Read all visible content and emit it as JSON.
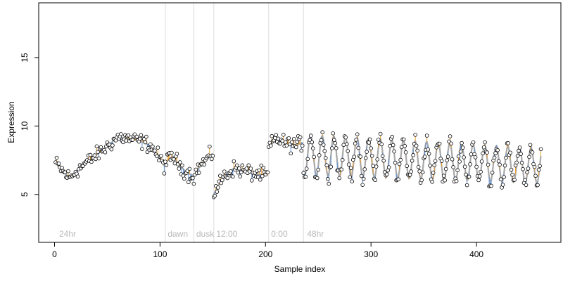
{
  "chart_data": {
    "type": "scatter",
    "title": "",
    "xlabel": "Sample index",
    "ylabel": "Expression",
    "xlim": [
      -15,
      480
    ],
    "ylim": [
      1.5,
      19
    ],
    "x_ticks": [
      0,
      100,
      200,
      300,
      400
    ],
    "y_ticks": [
      5,
      10,
      15
    ],
    "grid": false,
    "colors": {
      "fit_line": "#a8a8a8",
      "residual_positive": "#f0a030",
      "residual_negative": "#5b8fd8",
      "point_stroke": "#000000",
      "point_fill": "#ffffff",
      "divider": "#dddddd",
      "annotation_text": "#b8b8b8"
    },
    "annotations": [
      {
        "x": 3,
        "label": "24hr"
      },
      {
        "x": 106,
        "label": "dawn"
      },
      {
        "x": 133,
        "label": "dusk"
      },
      {
        "x": 152,
        "label": "12:00"
      },
      {
        "x": 204,
        "label": "0:00"
      },
      {
        "x": 238,
        "label": "48hr"
      }
    ],
    "dividers": [
      105,
      132,
      151,
      203,
      236
    ],
    "n_points": 461,
    "segments": [
      {
        "type": "anchors",
        "x": [
          1,
          10,
          15,
          20,
          35,
          50,
          60,
          75,
          85,
          92,
          100,
          104
        ],
        "y": [
          7.3,
          6.5,
          6.2,
          6.7,
          7.6,
          8.5,
          9.2,
          9.0,
          8.8,
          8.5,
          7.6,
          7.1
        ]
      },
      {
        "type": "anchors",
        "x": [
          105,
          112,
          118,
          125,
          131
        ],
        "y": [
          7.3,
          7.8,
          7.2,
          6.6,
          6.4
        ]
      },
      {
        "type": "anchors",
        "x": [
          132,
          137,
          145,
          150
        ],
        "y": [
          6.3,
          7.0,
          7.6,
          8.0
        ]
      },
      {
        "type": "anchors",
        "x": [
          151,
          155,
          160,
          170,
          180,
          190,
          202
        ],
        "y": [
          5.0,
          5.6,
          6.3,
          6.9,
          6.7,
          6.5,
          6.4
        ]
      },
      {
        "type": "anchors",
        "x": [
          203,
          210,
          220,
          230,
          235
        ],
        "y": [
          8.4,
          9.1,
          8.7,
          8.6,
          8.8
        ]
      },
      {
        "type": "oscillation",
        "x_start": 236,
        "x_end": 461,
        "period": 11,
        "phase": 240,
        "base_start": 7.9,
        "base_end": 7.1,
        "amp_start": 1.5,
        "amp_end": 1.3
      }
    ]
  }
}
